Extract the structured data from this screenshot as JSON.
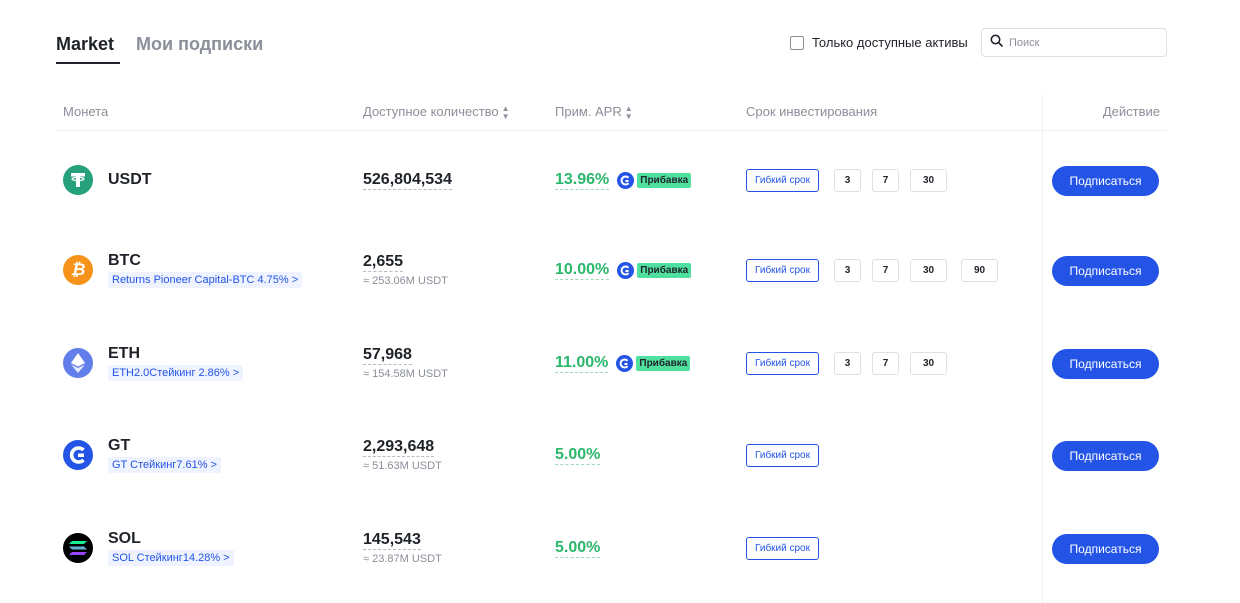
{
  "tabs": [
    {
      "label": "Market"
    },
    {
      "label": "Мои подписки"
    }
  ],
  "filter": {
    "label": "Только доступные активы"
  },
  "search": {
    "placeholder": "Поиск"
  },
  "table": {
    "headers": {
      "coin": "Монета",
      "amount": "Доступное количество",
      "apr": "Прим. APR",
      "term": "Срок инвестирования",
      "action": "Действие"
    },
    "flex_label": "Гибкий срок",
    "boost_label": "Прибавка",
    "subscribe_label": "Подписаться",
    "rows": [
      {
        "coin": "USDT",
        "tag": "",
        "amount": "526,804,534",
        "amount_usdt": "",
        "apr": "13.96%",
        "boost": true,
        "days": [
          "3",
          "7",
          "30"
        ],
        "icon": "tether-icon",
        "icon_color": "#26a17b"
      },
      {
        "coin": "BTC",
        "tag": "Returns Pioneer Capital-BTC 4.75% >",
        "amount": "2,655",
        "amount_usdt": "≈ 253.06M USDT",
        "apr": "10.00%",
        "boost": true,
        "days": [
          "3",
          "7",
          "30",
          "90"
        ],
        "icon": "bitcoin-icon",
        "icon_color": "#f7931a"
      },
      {
        "coin": "ETH",
        "tag": "ETH2.0Стейкинг 2.86% >",
        "amount": "57,968",
        "amount_usdt": "≈ 154.58M USDT",
        "apr": "11.00%",
        "boost": true,
        "days": [
          "3",
          "7",
          "30"
        ],
        "icon": "ethereum-icon",
        "icon_color": "#627eea"
      },
      {
        "coin": "GT",
        "tag": "GT Стейкинг7.61% >",
        "amount": "2,293,648",
        "amount_usdt": "≈ 51.63M USDT",
        "apr": "5.00%",
        "boost": false,
        "days": [],
        "icon": "gatetoken-icon",
        "icon_color": "#2354e6"
      },
      {
        "coin": "SOL",
        "tag": "SOL Стейкинг14.28% >",
        "amount": "145,543",
        "amount_usdt": "≈ 23.87M USDT",
        "apr": "5.00%",
        "boost": false,
        "days": [],
        "icon": "solana-icon",
        "icon_color": "#000000"
      }
    ]
  },
  "colors": {
    "accent": "#2354e6",
    "apr_green": "#2bb76b",
    "boost_badge": "#4fe0a0",
    "muted_text": "#8a8f99"
  }
}
